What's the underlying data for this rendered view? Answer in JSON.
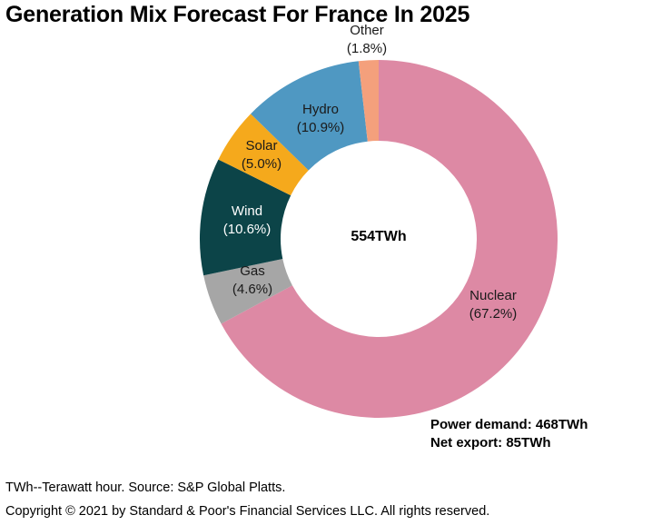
{
  "chart_data": {
    "type": "pie",
    "style": "donut",
    "title": "Generation Mix Forecast For France In 2025",
    "center_label": "554TWh",
    "slices": [
      {
        "name": "Nuclear",
        "value": 67.2,
        "pct_label": "(67.2%)",
        "color": "#dd89a4",
        "label_color": "#1a1a1a"
      },
      {
        "name": "Gas",
        "value": 4.6,
        "pct_label": "(4.6%)",
        "color": "#a6a6a6",
        "label_color": "#1a1a1a"
      },
      {
        "name": "Wind",
        "value": 10.6,
        "pct_label": "(10.6%)",
        "color": "#0c4448",
        "label_color": "#ffffff"
      },
      {
        "name": "Solar",
        "value": 5.0,
        "pct_label": "(5.0%)",
        "color": "#f5a91c",
        "label_color": "#1a1a1a"
      },
      {
        "name": "Hydro",
        "value": 10.9,
        "pct_label": "(10.9%)",
        "color": "#4f98c2",
        "label_color": "#1a1a1a"
      },
      {
        "name": "Other",
        "value": 1.8,
        "pct_label": "(1.8%)",
        "color": "#f4a07c",
        "label_color": "#1a1a1a"
      }
    ]
  },
  "notes": {
    "power_demand": "Power demand: 468TWh",
    "net_export": "Net export: 85TWh"
  },
  "footer": {
    "source": "TWh--Terawatt hour. Source: S&P Global Platts.",
    "copyright": "Copyright © 2021 by Standard & Poor's Financial Services LLC. All rights reserved."
  }
}
